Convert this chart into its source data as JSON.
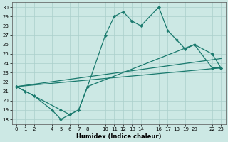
{
  "xlabel": "Humidex (Indice chaleur)",
  "bg_color": "#cce8e4",
  "grid_color": "#aacfcb",
  "line_color": "#1a7a6e",
  "xticks": [
    0,
    1,
    2,
    4,
    5,
    6,
    7,
    8,
    10,
    11,
    12,
    13,
    14,
    16,
    17,
    18,
    19,
    20,
    22,
    23
  ],
  "yticks": [
    18,
    19,
    20,
    21,
    22,
    23,
    24,
    25,
    26,
    27,
    28,
    29,
    30
  ],
  "ylim": [
    17.5,
    30.5
  ],
  "xlim": [
    -0.5,
    23.5
  ],
  "series1_x": [
    0,
    1,
    2,
    4,
    5,
    6,
    7,
    8,
    10,
    11,
    12,
    13,
    14,
    16,
    17,
    18,
    19,
    20,
    22,
    23
  ],
  "series1_y": [
    21.5,
    21.0,
    20.5,
    19.0,
    18.0,
    18.5,
    19.0,
    21.5,
    27.0,
    29.0,
    29.5,
    28.5,
    28.0,
    30.0,
    27.5,
    26.5,
    25.5,
    26.0,
    23.5,
    23.5
  ],
  "series2_x": [
    0,
    23
  ],
  "series2_y": [
    21.5,
    23.5
  ],
  "series3_x": [
    0,
    23
  ],
  "series3_y": [
    21.5,
    24.5
  ],
  "series4_x": [
    0,
    5,
    6,
    7,
    8,
    20,
    22,
    23
  ],
  "series4_y": [
    21.5,
    19.0,
    18.5,
    19.0,
    21.5,
    26.0,
    25.0,
    23.5
  ]
}
